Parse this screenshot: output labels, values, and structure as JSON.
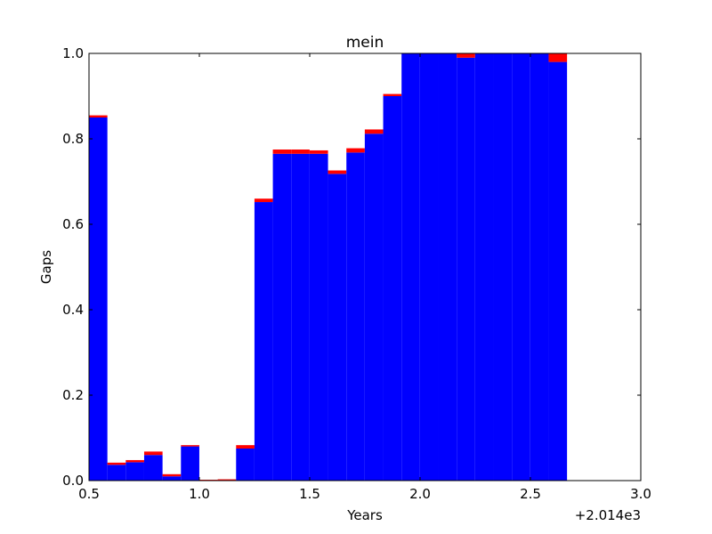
{
  "chart_data": {
    "type": "bar",
    "title": "mein",
    "xlabel": "Years",
    "ylabel": "Gaps",
    "x_offset_label": "+2.014e3",
    "xlim": [
      0.5,
      3.0
    ],
    "ylim": [
      0.0,
      1.0
    ],
    "bin_width": 0.0833,
    "x_ticks": [
      "0.5",
      "1.0",
      "1.5",
      "2.0",
      "2.5",
      "3.0"
    ],
    "y_ticks": [
      "0.0",
      "0.2",
      "0.4",
      "0.6",
      "0.8",
      "1.0"
    ],
    "grid": false,
    "legend": "none",
    "colors": {
      "blue": "#0000ff",
      "red": "#ff0000"
    },
    "series": [
      {
        "color": "#0000ff",
        "values": [
          0.85,
          0.037,
          0.043,
          0.06,
          0.01,
          0.08,
          0.0,
          0.0,
          0.075,
          0.652,
          0.765,
          0.765,
          0.765,
          0.718,
          0.768,
          0.812,
          0.9,
          1.0,
          1.0,
          1.0,
          0.99,
          1.0,
          1.0,
          1.0,
          1.0,
          0.98
        ]
      },
      {
        "color": "#ff0000",
        "values": [
          0.005,
          0.005,
          0.005,
          0.008,
          0.005,
          0.003,
          0.002,
          0.003,
          0.008,
          0.008,
          0.01,
          0.01,
          0.008,
          0.008,
          0.01,
          0.01,
          0.005,
          0.0,
          0.0,
          0.0,
          0.01,
          0.0,
          0.0,
          0.0,
          0.0,
          0.02
        ]
      }
    ]
  }
}
